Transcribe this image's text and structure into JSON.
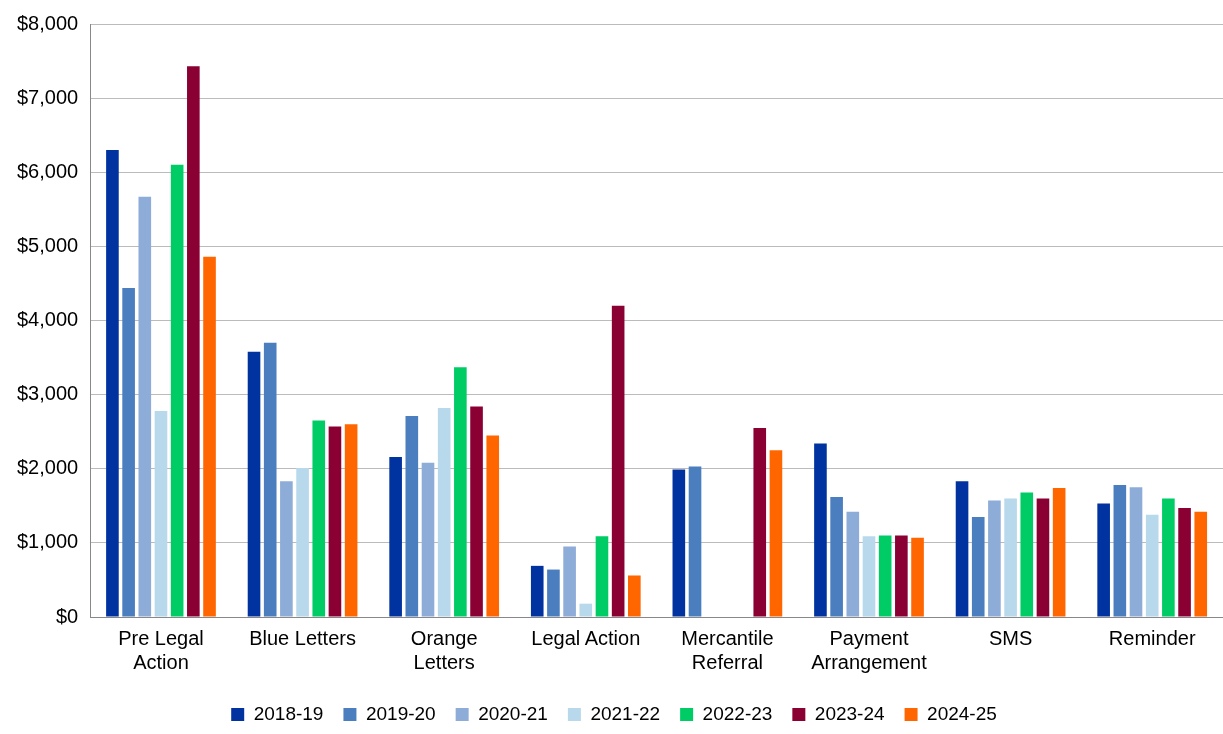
{
  "chart_data": {
    "type": "bar",
    "categories": [
      "Pre Legal Action",
      "Blue Letters",
      "Orange Letters",
      "Legal Action",
      "Mercantile Referral",
      "Payment Arrangement",
      "SMS",
      "Reminder"
    ],
    "series": [
      {
        "name": "2018-19",
        "color": "#0033a0",
        "values": [
          6300,
          3580,
          2160,
          690,
          1990,
          2340,
          1830,
          1530
        ]
      },
      {
        "name": "2019-20",
        "color": "#4a7ebf",
        "values": [
          4440,
          3700,
          2710,
          640,
          2030,
          1620,
          1350,
          1780
        ]
      },
      {
        "name": "2020-21",
        "color": "#8eacd8",
        "values": [
          5670,
          1830,
          2080,
          950,
          null,
          1420,
          1570,
          1750
        ]
      },
      {
        "name": "2021-22",
        "color": "#b8d8ec",
        "values": [
          2780,
          2010,
          2820,
          180,
          null,
          1090,
          1600,
          1380
        ]
      },
      {
        "name": "2022-23",
        "color": "#00cc66",
        "values": [
          6100,
          2650,
          3370,
          1090,
          null,
          1100,
          1680,
          1600
        ]
      },
      {
        "name": "2023-24",
        "color": "#8b0033",
        "values": [
          7430,
          2570,
          2840,
          4200,
          2550,
          1100,
          1600,
          1470
        ]
      },
      {
        "name": "2024-25",
        "color": "#ff6600",
        "values": [
          4860,
          2600,
          2450,
          560,
          2250,
          1070,
          1740,
          1420
        ]
      }
    ],
    "ylim": [
      0,
      8000
    ],
    "yticks": [
      {
        "value": 0,
        "label": "$0"
      },
      {
        "value": 1000,
        "label": "$1,000"
      },
      {
        "value": 2000,
        "label": "$2,000"
      },
      {
        "value": 3000,
        "label": "$3,000"
      },
      {
        "value": 4000,
        "label": "$4,000"
      },
      {
        "value": 5000,
        "label": "$5,000"
      },
      {
        "value": 6000,
        "label": "$6,000"
      },
      {
        "value": 7000,
        "label": "$7,000"
      },
      {
        "value": 8000,
        "label": "$8,000"
      }
    ],
    "grid": "y",
    "legend": "bottom"
  }
}
